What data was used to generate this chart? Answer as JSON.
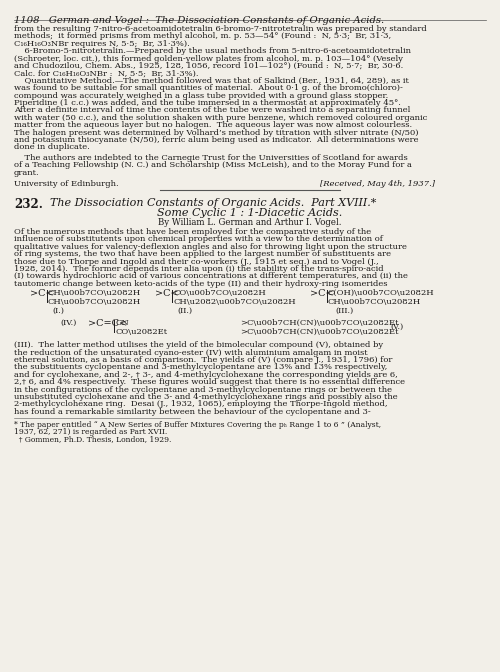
{
  "bg_color": "#f2efe8",
  "text_color": "#1a1818",
  "header": "1108   German and Vogel :  The Dissociation Constants of Organic Acids.",
  "body1": [
    "from the resulting 7-nitro-6-acetoamidotetralin 6-bromo-7-nitrotetralin was prepared by standard",
    "methods;  it formed prisms from methyl alcohol, m. p. 53—54° (Found :  N, 5·3;  Br, 31·3,",
    "C₁₆H₁₆O₃NBr requires N, 5·5;  Br, 31·3%).",
    "    6-Bromo-5-nitrotetralin.—Prepared by the usual methods from 5-nitro-6-acetoamidotetralin",
    "(Schroeter, loc. cit.), this formed golden-yellow plates from alcohol, m. p. 103—104° (Vesely",
    "and Chudozilou, Chem. Abs., 1925, 128, 1056, record 101—102°) (Found :  N, 5·7;  Br, 30·6.",
    "Calc. for C₁₆H₁₆O₃NBr :  N, 5·5;  Br, 31·3%).",
    "    Quantitative Method.—The method followed was that of Salkind (Ber., 1931, 64, 289), as it",
    "was found to be suitable for small quantities of material.  About 0·1 g. of the bromo(chloro)-",
    "compound was accurately weighed in a glass tube provided with a ground glass stopper.",
    "Piperidine (1 c.c.) was added, and the tube immersed in a thermostat at approximately 45°.",
    "After a definite interval of time the contents of the tube were washed into a separating funnel",
    "with water (50 c.c.), and the solution shaken with pure benzene, which removed coloured organic",
    "matter from the aqueous layer but no halogen.  The aqueous layer was now almost colourless.",
    "The halogen present was determined by Volhard’s method by titration with silver nitrate (N/50)",
    "and potassium thiocyanate (N/50), ferric alum being used as indicator.  All determinations were",
    "done in duplicate."
  ],
  "ack": [
    "    The authors are indebted to the Carnegie Trust for the Universities of Scotland for awards",
    "of a Teaching Fellowship (N. C.) and Scholarship (Miss McLeish), and to the Moray Fund for a",
    "grant."
  ],
  "address": "University of Edinburgh.",
  "received": "[Received, May 4th, 1937.]",
  "sec_num": "232.",
  "sec_t1": "The Dissociation Constants of Organic Acids.  Part XVIII.*",
  "sec_t2": "Some Cyclic 1 : 1-Diacetic Acids.",
  "byline": "By William L. German and Arthur I. Vogel.",
  "intro": [
    "Of the numerous methods that have been employed for the comparative study of the",
    "influence of substitutents upon chemical properties with a view to the determination of",
    "qualitative values for valency-deflexion angles and also for throwing light upon the structure",
    "of ring systems, the two that have been applied to the largest number of substituents are",
    "those due to Thorpe and Ingold and their co-workers (J., 1915 et seq.) and to Vogel (J.,",
    "1928, 2014).  The former depends inter alia upon (i) the stability of the trans-spiro-acid",
    "(I) towards hydrochloric acid of various concentrations at different temperatures, and (ii) the",
    "tautomeric change between keto-acids of the type (II) and their hydroxy-ring isomerides"
  ],
  "body2": [
    "(III).  The latter method utilises the yield of the bimolecular compound (V), obtained by",
    "the reduction of the unsaturated cyano-ester (IV) with aluminium amalgam in moist",
    "ethereal solution, as a basis of comparison.  The yields of (V) (compare J., 1931, 1796) for",
    "the substituents cyclopentane and 3-methylcyclopentane are 13% and 13% respectively,",
    "and for cyclohexane, and 2-, † 3-, and 4-methylcyclohexane the corresponding yields are 6,",
    "2,† 6, and 4% respectively.  These figures would suggest that there is no essential difference",
    "in the configurations of the cyclopentane and 3-methylcyclopentane rings or between the",
    "unsubstituted cyclohexane and the 3- and 4-methylcyclohexane rings and possibly also the",
    "2-methylcyclohexane ring.  Desai (J., 1932, 1065), employing the Thorpe-Ingold method,",
    "has found a remarkable similarity between the behaviour of the cyclopentane and 3-"
  ],
  "footnotes": [
    "* The paper entitled “ A New Series of Buffer Mixtures Covering the pₕ Range 1 to 6 ” (Analyst,",
    "1937, 62, 271) is regarded as Part XVII.",
    "  † Gommen, Ph.D. Thesis, London, 1929."
  ]
}
